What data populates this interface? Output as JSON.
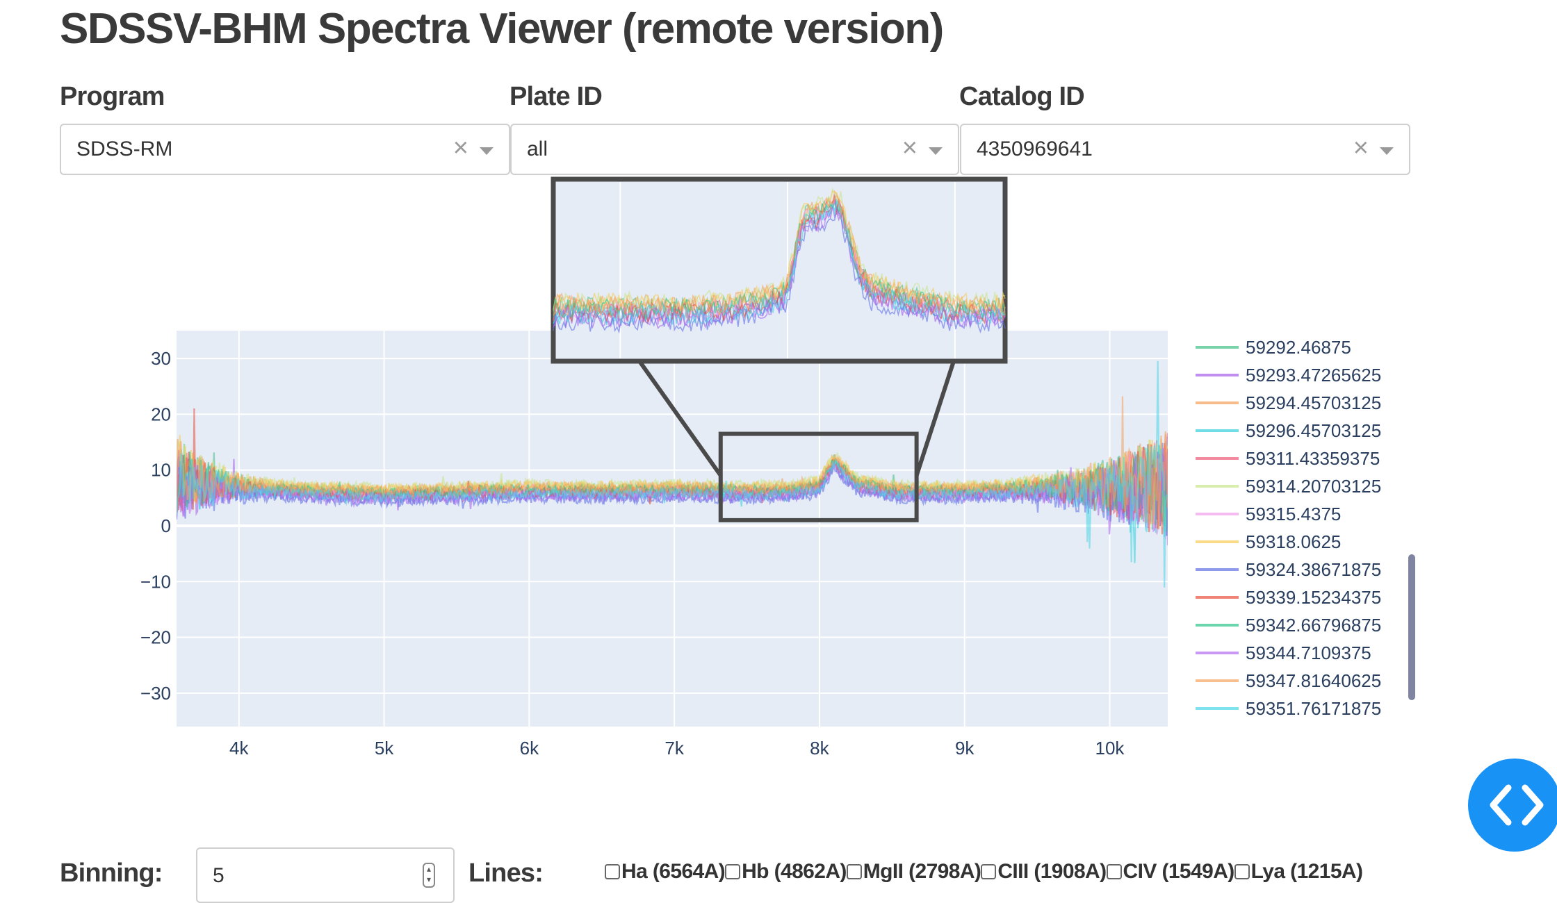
{
  "page": {
    "title": "SDSSV-BHM Spectra Viewer (remote version)"
  },
  "filters": {
    "program": {
      "label": "Program",
      "value": "SDSS-RM"
    },
    "plate": {
      "label": "Plate ID",
      "value": "all"
    },
    "catalog": {
      "label": "Catalog ID",
      "value": "4350969641"
    }
  },
  "controls": {
    "binning_label": "Binning:",
    "binning_value": "5",
    "lines_label": "Lines:",
    "lines": [
      "Ha (6564A)",
      "Hb (4862A)",
      "MgII (2798A)",
      "CIII (1908A)",
      "CIV (1549A)",
      "Lya (1215A)"
    ]
  },
  "chart_data": {
    "type": "line",
    "title": "",
    "xlabel": "",
    "ylabel": "",
    "xlim": [
      3570,
      10400
    ],
    "ylim": [
      -36,
      35
    ],
    "xticks": [
      4000,
      5000,
      6000,
      7000,
      8000,
      9000,
      10000
    ],
    "xtick_labels": [
      "4k",
      "5k",
      "6k",
      "7k",
      "8k",
      "9k",
      "10k"
    ],
    "yticks": [
      -30,
      -20,
      -10,
      0,
      10,
      20,
      30
    ],
    "ytick_labels": [
      "−30",
      "−20",
      "−10",
      "0",
      "10",
      "20",
      "30"
    ],
    "grid": true,
    "legend_position": "right",
    "zoom_inset": {
      "x_range": [
        7300,
        8650
      ],
      "y_range": [
        3,
        15
      ]
    },
    "continuum": {
      "x": [
        3570,
        3700,
        4000,
        4500,
        5000,
        5500,
        6000,
        6500,
        7000,
        7500,
        7800,
        8000,
        8100,
        8250,
        8500,
        9000,
        9500,
        10000,
        10400
      ],
      "y": [
        9,
        7.5,
        6.8,
        6.0,
        5.5,
        5.8,
        6.2,
        6.0,
        6.2,
        6.0,
        6.1,
        7.0,
        11.5,
        7.5,
        6.0,
        6.0,
        6.5,
        6.8,
        7.0
      ]
    },
    "series": [
      {
        "name": "59292.46875",
        "color": "#3fbf86",
        "offset": 0.6
      },
      {
        "name": "59293.47265625",
        "color": "#a55ee8",
        "offset": -0.8
      },
      {
        "name": "59294.45703125",
        "color": "#f5a05a",
        "offset": 0.9
      },
      {
        "name": "59296.45703125",
        "color": "#35cfdc",
        "offset": -0.4
      },
      {
        "name": "59311.43359375",
        "color": "#ee5a78",
        "offset": 0.2
      },
      {
        "name": "59314.20703125",
        "color": "#c9e58a",
        "offset": 1.3
      },
      {
        "name": "59315.4375",
        "color": "#f29ee9",
        "offset": 0.0
      },
      {
        "name": "59318.0625",
        "color": "#f6cc56",
        "offset": 1.1
      },
      {
        "name": "59324.38671875",
        "color": "#5f6fe6",
        "offset": -1.2
      },
      {
        "name": "59339.15234375",
        "color": "#e8503c",
        "offset": -0.1
      },
      {
        "name": "59342.66796875",
        "color": "#2cc38c",
        "offset": 0.4
      },
      {
        "name": "59344.7109375",
        "color": "#b26cf0",
        "offset": -0.6
      },
      {
        "name": "59347.81640625",
        "color": "#f7a35d",
        "offset": 0.7
      },
      {
        "name": "59351.76171875",
        "color": "#4ad6e6",
        "offset": -0.3
      }
    ]
  },
  "colors": {
    "plot_bg": "#e5ecf6",
    "grid": "#ffffff",
    "inset_border": "#4a4a4a",
    "nav_button": "#1992f5",
    "legend_scrollbar": "#7f84a0"
  },
  "icons": {
    "clear": "×",
    "nav": "code-brackets-icon"
  }
}
